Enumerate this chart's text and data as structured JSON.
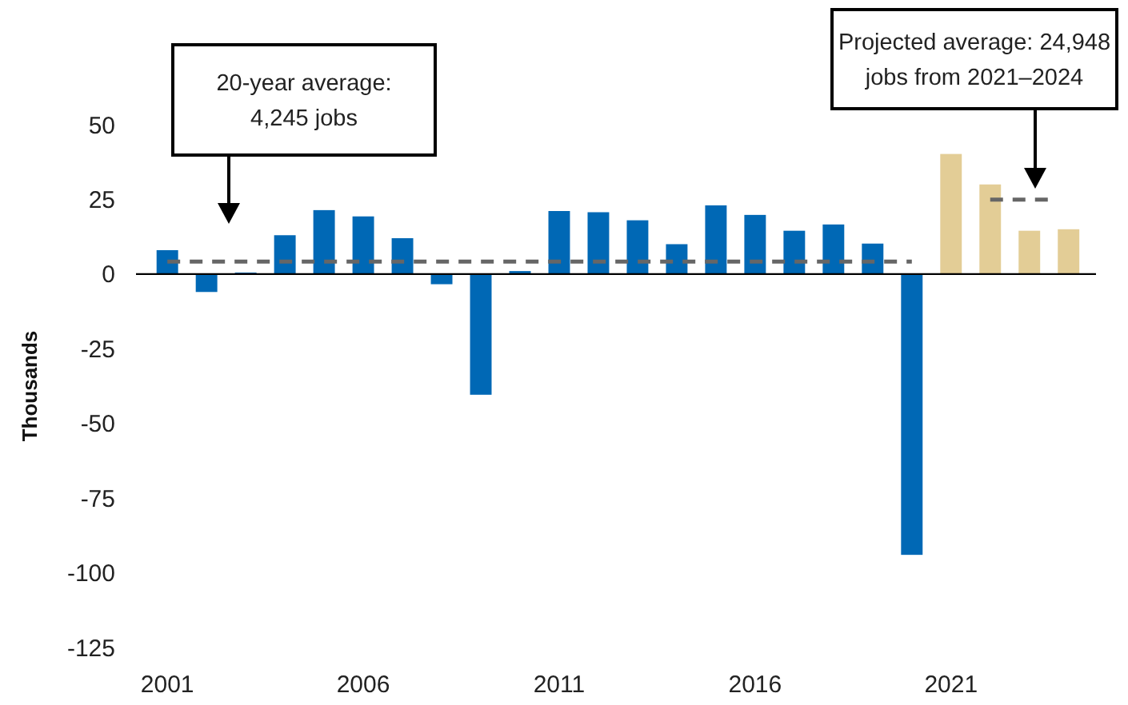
{
  "chart_data": {
    "type": "bar",
    "ylabel": "Thousands",
    "xlim": [
      2000.2,
      2024.7
    ],
    "xticks": [
      2001,
      2006,
      2011,
      2016,
      2021
    ],
    "ylim": [
      -125,
      50
    ],
    "yticks": [
      -125,
      -100,
      -75,
      -50,
      -25,
      0,
      25,
      50
    ],
    "series": [
      {
        "color": "#0068b5",
        "x": [
          2001,
          2002,
          2003,
          2004,
          2005,
          2006,
          2007,
          2008,
          2009,
          2010,
          2011,
          2012,
          2013,
          2014,
          2015,
          2016,
          2017,
          2018,
          2019,
          2020
        ],
        "values": [
          8,
          -6,
          0.5,
          13,
          21.4,
          19.3,
          12,
          -3.4,
          -40.4,
          1,
          21.1,
          20.7,
          18,
          10,
          23,
          19.8,
          14.5,
          16.6,
          10.2,
          -94
        ]
      },
      {
        "color": "#e3cd96",
        "x": [
          2021,
          2022,
          2023,
          2024
        ],
        "values": [
          40.2,
          30,
          14.5,
          15
        ]
      },
      {
        "type": "line",
        "color": "#666666",
        "line_style": "dashed",
        "x": [
          2001,
          2020
        ],
        "values": [
          4.2,
          4.2
        ]
      },
      {
        "type": "line",
        "color": "#666666",
        "line_style": "dashed",
        "x": [
          2022,
          2023.6
        ],
        "values": [
          24.9,
          24.9
        ]
      }
    ],
    "annotations": [
      "20-year average:\n4,245 jobs",
      "Projected average: 24,948\njobs from 2021–2024"
    ]
  }
}
